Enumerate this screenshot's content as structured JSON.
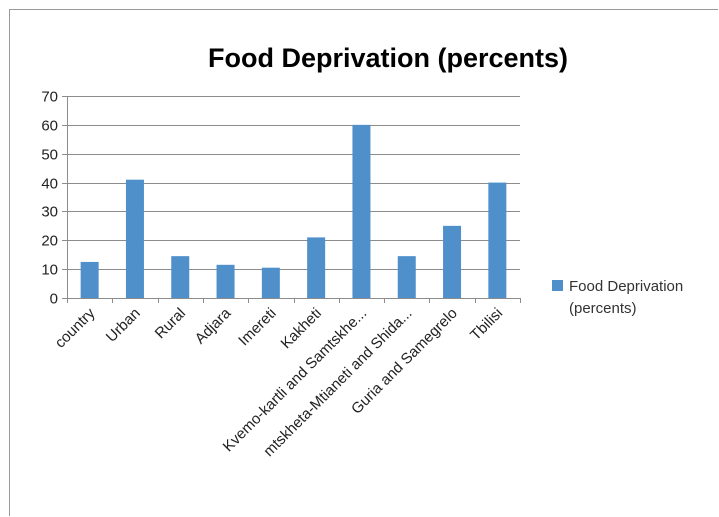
{
  "chart_data": {
    "type": "bar",
    "title": "Food Deprivation (percents)",
    "xlabel": "",
    "ylabel": "",
    "ylim": [
      0,
      70
    ],
    "yticks": [
      0,
      10,
      20,
      30,
      40,
      50,
      60,
      70
    ],
    "grid": true,
    "legend_position": "right",
    "categories": [
      "country",
      "Urban",
      "Rural",
      "Adjara",
      "Imereti",
      "Kakheti",
      "Kvemo-kartli and Samtskhe...",
      "mtskheta-Mtianeti and  Shida...",
      "Guria and Samegrelo",
      "Tbilisi"
    ],
    "series": [
      {
        "name": "Food Deprivation (percents)",
        "legend_lines": [
          "Food Deprivation",
          "(percents)"
        ],
        "color": "#4f8fca",
        "values": [
          12.5,
          41,
          14.5,
          11.5,
          10.5,
          21,
          60,
          14.5,
          25,
          40
        ]
      }
    ]
  }
}
